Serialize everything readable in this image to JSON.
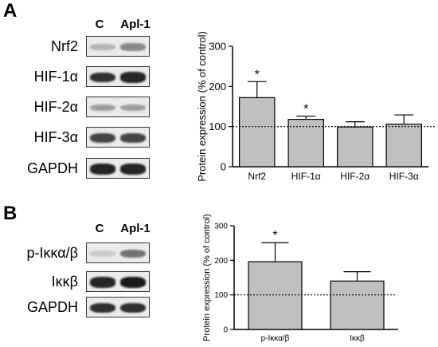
{
  "panels": [
    {
      "letter": "A",
      "lanes": [
        "C",
        "Apl-1"
      ],
      "blots": [
        {
          "label": "Nrf2",
          "intensity": [
            0.25,
            0.45
          ]
        },
        {
          "label": "HIF-1α",
          "intensity": [
            0.85,
            0.9
          ]
        },
        {
          "label": "HIF-2α",
          "intensity": [
            0.35,
            0.35
          ]
        },
        {
          "label": "HIF-3α",
          "intensity": [
            0.75,
            0.75
          ]
        },
        {
          "label": "GAPDH",
          "intensity": [
            0.9,
            0.9
          ]
        }
      ]
    },
    {
      "letter": "B",
      "lanes": [
        "C",
        "Apl-1"
      ],
      "blots": [
        {
          "label": "p-Iκκα/β",
          "intensity": [
            0.15,
            0.55
          ]
        },
        {
          "label": "Iκκβ",
          "intensity": [
            0.9,
            0.95
          ]
        },
        {
          "label": "GAPDH",
          "intensity": [
            0.85,
            0.85
          ]
        }
      ]
    }
  ],
  "chart_data": [
    {
      "type": "bar",
      "categories": [
        "Nrf2",
        "HIF-1α",
        "HIF-2α",
        "HIF-3α"
      ],
      "values": [
        172,
        118,
        99,
        106
      ],
      "errors": [
        40,
        8,
        13,
        23
      ],
      "significance": [
        "*",
        "*",
        "",
        ""
      ],
      "reference_line": 100,
      "ylabel": "Protein expression (% of control)",
      "ylim": [
        0,
        300
      ],
      "yticks": [
        "0",
        "100",
        "200",
        "300"
      ],
      "bar_color": "#c0c0c0"
    },
    {
      "type": "bar",
      "categories": [
        "p-Iκκα/β",
        "Iκκβ"
      ],
      "values": [
        196,
        140
      ],
      "errors": [
        55,
        27
      ],
      "significance": [
        "*",
        ""
      ],
      "reference_line": 100,
      "ylabel": "Protein expression (% of control)",
      "ylim": [
        0,
        300
      ],
      "yticks": [
        "0",
        "100",
        "200",
        "300"
      ],
      "bar_color": "#c0c0c0"
    }
  ]
}
